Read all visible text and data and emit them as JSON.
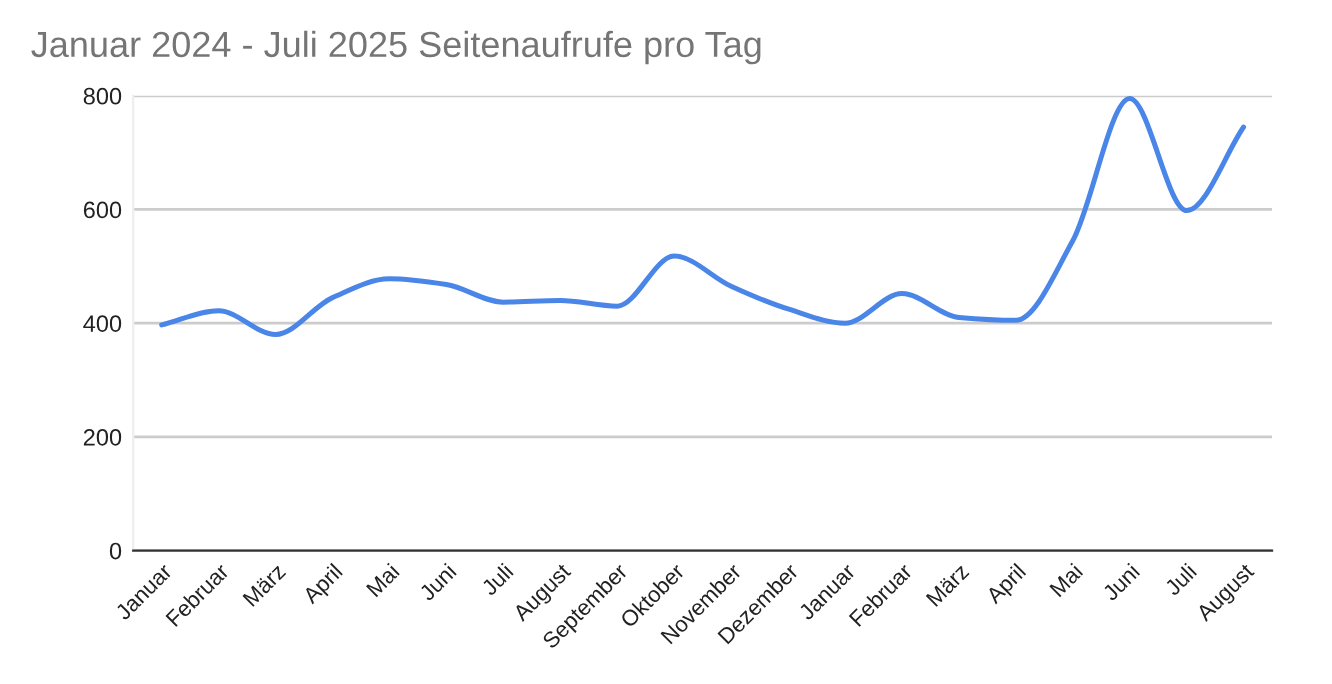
{
  "chart_data": {
    "type": "line",
    "title": "Januar 2024 - Juli 2025 Seitenaufrufe pro Tag",
    "categories": [
      "Januar",
      "Februar",
      "März",
      "April",
      "Mai",
      "Juni",
      "Juli",
      "August",
      "September",
      "Oktober",
      "November",
      "Dezember",
      "Januar",
      "Februar",
      "März",
      "April",
      "Mai",
      "Juni",
      "Juli",
      "August"
    ],
    "series": [
      {
        "color": "#4a86e8",
        "values": [
          397,
          422,
          380,
          445,
          478,
          468,
          437,
          440,
          430,
          518,
          465,
          425,
          400,
          452,
          410,
          405,
          545,
          795,
          598,
          745
        ]
      }
    ],
    "ylim": [
      0,
      800
    ],
    "yticks": [
      0,
      200,
      400,
      600,
      800
    ],
    "grid": "y",
    "marker": "none",
    "line_style": "solid"
  }
}
